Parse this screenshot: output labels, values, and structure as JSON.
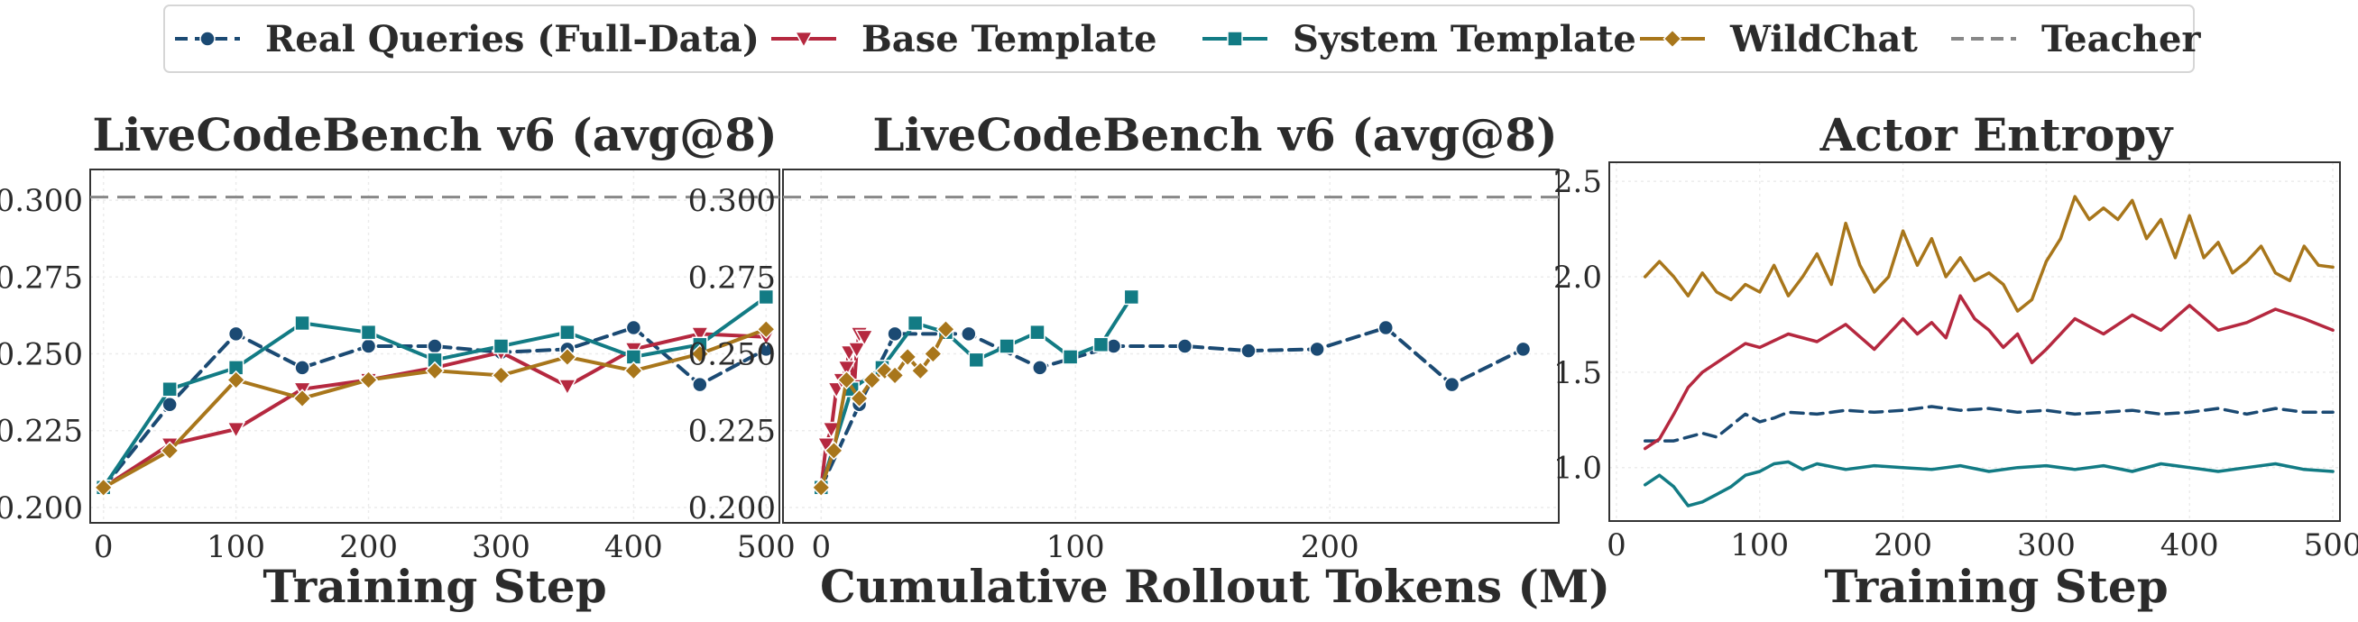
{
  "legend": {
    "items": [
      {
        "label": "Real Queries (Full-Data)",
        "color": "#1b4a73",
        "marker": "circle",
        "dash": "dashed"
      },
      {
        "label": "Base Template",
        "color": "#b5283f",
        "marker": "triangle-down",
        "dash": "solid"
      },
      {
        "label": "System Template",
        "color": "#127b84",
        "marker": "square",
        "dash": "solid"
      },
      {
        "label": "WildChat",
        "color": "#a8761b",
        "marker": "diamond",
        "dash": "solid"
      },
      {
        "label": "Teacher",
        "color": "#888888",
        "marker": "none",
        "dash": "dashed"
      }
    ]
  },
  "chart_data": [
    {
      "type": "line",
      "title": "LiveCodeBench v6 (avg@8)",
      "xlabel": "Training Step",
      "ylabel": "",
      "xlim": [
        -10,
        510
      ],
      "ylim": [
        0.195,
        0.31
      ],
      "xticks": [
        0,
        100,
        200,
        300,
        400,
        500
      ],
      "xtick_labels": [
        "0",
        "100",
        "200",
        "300",
        "400",
        "500"
      ],
      "yticks": [
        0.2,
        0.225,
        0.25,
        0.275,
        0.3
      ],
      "ytick_labels": [
        "0.200",
        "0.225",
        "0.250",
        "0.275",
        "0.300"
      ],
      "grid": true,
      "teacher": 0.301,
      "series": [
        {
          "name": "Real Queries (Full-Data)",
          "x": [
            0,
            50,
            100,
            150,
            200,
            250,
            300,
            350,
            400,
            450,
            500
          ],
          "y": [
            0.2065,
            0.2335,
            0.2565,
            0.2455,
            0.2525,
            0.2525,
            0.2505,
            0.2515,
            0.2585,
            0.24,
            0.2515
          ]
        },
        {
          "name": "Base Template",
          "x": [
            0,
            50,
            100,
            150,
            200,
            250,
            300,
            350,
            400,
            450,
            500
          ],
          "y": [
            0.2065,
            0.2205,
            0.2255,
            0.2385,
            0.2415,
            0.2455,
            0.2505,
            0.2395,
            0.2515,
            0.2565,
            0.2555
          ]
        },
        {
          "name": "System Template",
          "x": [
            0,
            50,
            100,
            150,
            200,
            250,
            300,
            350,
            400,
            450,
            500
          ],
          "y": [
            0.2065,
            0.2385,
            0.2455,
            0.26,
            0.257,
            0.248,
            0.2525,
            0.257,
            0.249,
            0.253,
            0.2685
          ]
        },
        {
          "name": "WildChat",
          "x": [
            0,
            50,
            100,
            150,
            200,
            250,
            300,
            350,
            400,
            450,
            500
          ],
          "y": [
            0.2065,
            0.2185,
            0.2415,
            0.2355,
            0.2415,
            0.2445,
            0.243,
            0.249,
            0.2445,
            0.25,
            0.258
          ]
        }
      ]
    },
    {
      "type": "line",
      "title": "LiveCodeBench v6 (avg@8)",
      "xlabel": "Cumulative Rollout Tokens (M)",
      "ylabel": "",
      "xlim": [
        -15,
        290
      ],
      "ylim": [
        0.195,
        0.31
      ],
      "xticks": [
        0,
        100,
        200
      ],
      "xtick_labels": [
        "0",
        "100",
        "200"
      ],
      "yticks": [
        0.2,
        0.225,
        0.25,
        0.275,
        0.3
      ],
      "ytick_labels": [
        "0.200",
        "0.225",
        "0.250",
        "0.275",
        "0.300"
      ],
      "grid": true,
      "teacher": 0.301,
      "series": [
        {
          "name": "Real Queries (Full-Data)",
          "x": [
            0,
            15,
            29,
            58,
            86,
            115,
            143,
            168,
            195,
            222,
            248,
            276
          ],
          "y": [
            0.2065,
            0.2335,
            0.2565,
            0.2565,
            0.2455,
            0.2525,
            0.2525,
            0.251,
            0.2515,
            0.2585,
            0.24,
            0.2515
          ]
        },
        {
          "name": "Base Template",
          "x": [
            0,
            2,
            4,
            6,
            8,
            10,
            11,
            13,
            14,
            15,
            17
          ],
          "y": [
            0.2065,
            0.2205,
            0.2255,
            0.2385,
            0.2415,
            0.2455,
            0.2505,
            0.2395,
            0.2515,
            0.2565,
            0.2555
          ]
        },
        {
          "name": "System Template",
          "x": [
            0,
            12,
            24,
            37,
            49,
            61,
            73,
            85,
            98,
            110,
            122
          ],
          "y": [
            0.2065,
            0.2385,
            0.2455,
            0.26,
            0.257,
            0.248,
            0.2525,
            0.257,
            0.249,
            0.253,
            0.2685
          ]
        },
        {
          "name": "WildChat",
          "x": [
            0,
            5,
            10,
            15,
            20,
            25,
            29,
            34,
            39,
            44,
            49
          ],
          "y": [
            0.2065,
            0.2185,
            0.2415,
            0.2355,
            0.2415,
            0.2445,
            0.243,
            0.249,
            0.2445,
            0.25,
            0.258
          ]
        }
      ]
    },
    {
      "type": "line",
      "title": "Actor Entropy",
      "xlabel": "Training Step",
      "ylabel": "",
      "xlim": [
        -5,
        505
      ],
      "ylim": [
        0.72,
        2.6
      ],
      "xticks": [
        0,
        100,
        200,
        300,
        400,
        500
      ],
      "xtick_labels": [
        "0",
        "100",
        "200",
        "300",
        "400",
        "500"
      ],
      "yticks": [
        1.0,
        1.5,
        2.0,
        2.5
      ],
      "ytick_labels": [
        "1.0",
        "1.5",
        "2.0",
        "2.5"
      ],
      "grid": true,
      "series": [
        {
          "name": "Real Queries (Full-Data)",
          "x": [
            20,
            40,
            60,
            70,
            80,
            90,
            100,
            110,
            120,
            140,
            160,
            180,
            200,
            220,
            240,
            260,
            280,
            300,
            320,
            340,
            360,
            380,
            400,
            420,
            440,
            460,
            480,
            500
          ],
          "y": [
            1.14,
            1.14,
            1.18,
            1.16,
            1.22,
            1.28,
            1.24,
            1.26,
            1.29,
            1.28,
            1.3,
            1.29,
            1.3,
            1.32,
            1.3,
            1.31,
            1.29,
            1.3,
            1.28,
            1.29,
            1.3,
            1.28,
            1.29,
            1.31,
            1.28,
            1.31,
            1.29,
            1.29
          ]
        },
        {
          "name": "Base Template",
          "x": [
            20,
            30,
            40,
            50,
            60,
            70,
            80,
            90,
            100,
            120,
            140,
            160,
            180,
            200,
            210,
            220,
            230,
            240,
            250,
            260,
            270,
            280,
            290,
            300,
            320,
            340,
            360,
            380,
            400,
            420,
            440,
            460,
            480,
            500
          ],
          "y": [
            1.1,
            1.15,
            1.28,
            1.42,
            1.5,
            1.55,
            1.6,
            1.65,
            1.63,
            1.7,
            1.66,
            1.75,
            1.62,
            1.78,
            1.7,
            1.76,
            1.68,
            1.9,
            1.78,
            1.72,
            1.63,
            1.7,
            1.55,
            1.62,
            1.78,
            1.7,
            1.8,
            1.72,
            1.85,
            1.72,
            1.76,
            1.83,
            1.78,
            1.72
          ]
        },
        {
          "name": "System Template",
          "x": [
            20,
            30,
            40,
            50,
            60,
            70,
            80,
            90,
            100,
            110,
            120,
            130,
            140,
            160,
            180,
            200,
            220,
            240,
            260,
            280,
            300,
            320,
            340,
            360,
            380,
            400,
            420,
            440,
            460,
            480,
            500
          ],
          "y": [
            0.91,
            0.96,
            0.9,
            0.8,
            0.82,
            0.86,
            0.9,
            0.96,
            0.98,
            1.02,
            1.03,
            0.99,
            1.02,
            0.99,
            1.01,
            1.0,
            0.99,
            1.01,
            0.98,
            1.0,
            1.01,
            0.99,
            1.01,
            0.98,
            1.02,
            1.0,
            0.98,
            1.0,
            1.02,
            0.99,
            0.98
          ]
        },
        {
          "name": "WildChat",
          "x": [
            20,
            30,
            40,
            50,
            60,
            70,
            80,
            90,
            100,
            110,
            120,
            130,
            140,
            150,
            160,
            170,
            180,
            190,
            200,
            210,
            220,
            230,
            240,
            250,
            260,
            270,
            280,
            290,
            300,
            310,
            320,
            330,
            340,
            350,
            360,
            370,
            380,
            390,
            400,
            410,
            420,
            430,
            440,
            450,
            460,
            470,
            480,
            490,
            500
          ],
          "y": [
            2.0,
            2.08,
            2.0,
            1.9,
            2.02,
            1.92,
            1.88,
            1.96,
            1.92,
            2.06,
            1.9,
            2.0,
            2.12,
            1.96,
            2.28,
            2.06,
            1.92,
            2.0,
            2.24,
            2.06,
            2.2,
            2.0,
            2.1,
            1.98,
            2.02,
            1.96,
            1.82,
            1.88,
            2.08,
            2.2,
            2.42,
            2.3,
            2.36,
            2.3,
            2.4,
            2.2,
            2.3,
            2.1,
            2.32,
            2.1,
            2.18,
            2.02,
            2.08,
            2.16,
            2.02,
            1.98,
            2.16,
            2.06,
            2.05
          ]
        }
      ]
    }
  ]
}
